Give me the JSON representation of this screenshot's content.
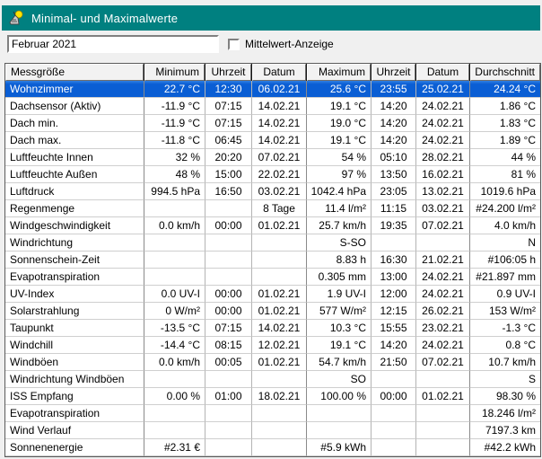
{
  "window": {
    "title": "Minimal- und Maximalwerte",
    "icon": "weather-station-icon"
  },
  "colors": {
    "titlebar": "#008080",
    "selection_blue": "#0a5ed4",
    "header_bg": "#f2f2f2"
  },
  "toolbar": {
    "period_value": "Februar 2021",
    "checkbox_label": "Mittelwert-Anzeige",
    "checkbox_checked": false
  },
  "table": {
    "columns": [
      {
        "label": "Messgröße",
        "align": "left"
      },
      {
        "label": "Minimum",
        "align": "right"
      },
      {
        "label": "Uhrzeit",
        "align": "center"
      },
      {
        "label": "Datum",
        "align": "center"
      },
      {
        "label": "Maximum",
        "align": "right"
      },
      {
        "label": "Uhrzeit",
        "align": "center"
      },
      {
        "label": "Datum",
        "align": "center"
      },
      {
        "label": "Durchschnitt",
        "align": "right"
      }
    ],
    "rows": [
      {
        "selected": true,
        "cells": [
          "Wohnzimmer",
          "22.7 °C",
          "12:30",
          "06.02.21",
          "25.6 °C",
          "23:55",
          "25.02.21",
          "24.24 °C"
        ]
      },
      {
        "selected": false,
        "cells": [
          "Dachsensor (Aktiv)",
          "-11.9 °C",
          "07:15",
          "14.02.21",
          "19.1 °C",
          "14:20",
          "24.02.21",
          "1.86 °C"
        ]
      },
      {
        "selected": false,
        "cells": [
          "Dach min.",
          "-11.9 °C",
          "07:15",
          "14.02.21",
          "19.0 °C",
          "14:20",
          "24.02.21",
          "1.83 °C"
        ]
      },
      {
        "selected": false,
        "cells": [
          "Dach max.",
          "-11.8 °C",
          "06:45",
          "14.02.21",
          "19.1 °C",
          "14:20",
          "24.02.21",
          "1.89 °C"
        ]
      },
      {
        "selected": false,
        "cells": [
          "Luftfeuchte Innen",
          "32 %",
          "20:20",
          "07.02.21",
          "54 %",
          "05:10",
          "28.02.21",
          "44 %"
        ]
      },
      {
        "selected": false,
        "cells": [
          "Luftfeuchte Außen",
          "48 %",
          "15:00",
          "22.02.21",
          "97 %",
          "13:50",
          "16.02.21",
          "81 %"
        ]
      },
      {
        "selected": false,
        "cells": [
          "Luftdruck",
          "994.5 hPa",
          "16:50",
          "03.02.21",
          "1042.4 hPa",
          "23:05",
          "13.02.21",
          "1019.6 hPa"
        ]
      },
      {
        "selected": false,
        "cells": [
          "Regenmenge",
          "",
          "",
          "8 Tage",
          "11.4 l/m²",
          "11:15",
          "03.02.21",
          "#24.200 l/m²"
        ]
      },
      {
        "selected": false,
        "cells": [
          "Windgeschwindigkeit",
          "0.0 km/h",
          "00:00",
          "01.02.21",
          "25.7 km/h",
          "19:35",
          "07.02.21",
          "4.0 km/h"
        ]
      },
      {
        "selected": false,
        "cells": [
          "Windrichtung",
          "",
          "",
          "",
          "S-SO",
          "",
          "",
          "N"
        ]
      },
      {
        "selected": false,
        "cells": [
          "Sonnenschein-Zeit",
          "",
          "",
          "",
          "8.83 h",
          "16:30",
          "21.02.21",
          "#106:05 h"
        ]
      },
      {
        "selected": false,
        "cells": [
          "Evapotranspiration",
          "",
          "",
          "",
          "0.305 mm",
          "13:00",
          "24.02.21",
          "#21.897 mm"
        ]
      },
      {
        "selected": false,
        "cells": [
          "UV-Index",
          "0.0 UV-I",
          "00:00",
          "01.02.21",
          "1.9 UV-I",
          "12:00",
          "24.02.21",
          "0.9 UV-I"
        ]
      },
      {
        "selected": false,
        "cells": [
          "Solarstrahlung",
          "0 W/m²",
          "00:00",
          "01.02.21",
          "577 W/m²",
          "12:15",
          "26.02.21",
          "153 W/m²"
        ]
      },
      {
        "selected": false,
        "cells": [
          "Taupunkt",
          "-13.5 °C",
          "07:15",
          "14.02.21",
          "10.3 °C",
          "15:55",
          "23.02.21",
          "-1.3 °C"
        ]
      },
      {
        "selected": false,
        "cells": [
          "Windchill",
          "-14.4 °C",
          "08:15",
          "12.02.21",
          "19.1 °C",
          "14:20",
          "24.02.21",
          "0.8 °C"
        ]
      },
      {
        "selected": false,
        "cells": [
          "Windböen",
          "0.0 km/h",
          "00:05",
          "01.02.21",
          "54.7 km/h",
          "21:50",
          "07.02.21",
          "10.7 km/h"
        ]
      },
      {
        "selected": false,
        "cells": [
          "Windrichtung Windböen",
          "",
          "",
          "",
          "SO",
          "",
          "",
          "S"
        ]
      },
      {
        "selected": false,
        "cells": [
          "ISS Empfang",
          "0.00 %",
          "01:00",
          "18.02.21",
          "100.00 %",
          "00:00",
          "01.02.21",
          "98.30 %"
        ]
      },
      {
        "selected": false,
        "cells": [
          "Evapotranspiration",
          "",
          "",
          "",
          "",
          "",
          "",
          "18.246 l/m²"
        ]
      },
      {
        "selected": false,
        "cells": [
          "Wind Verlauf",
          "",
          "",
          "",
          "",
          "",
          "",
          "7197.3 km"
        ]
      },
      {
        "selected": false,
        "cells": [
          "Sonnenenergie",
          "#2.31 €",
          "",
          "",
          "#5.9 kWh",
          "",
          "",
          "#42.2 kWh"
        ]
      }
    ]
  }
}
